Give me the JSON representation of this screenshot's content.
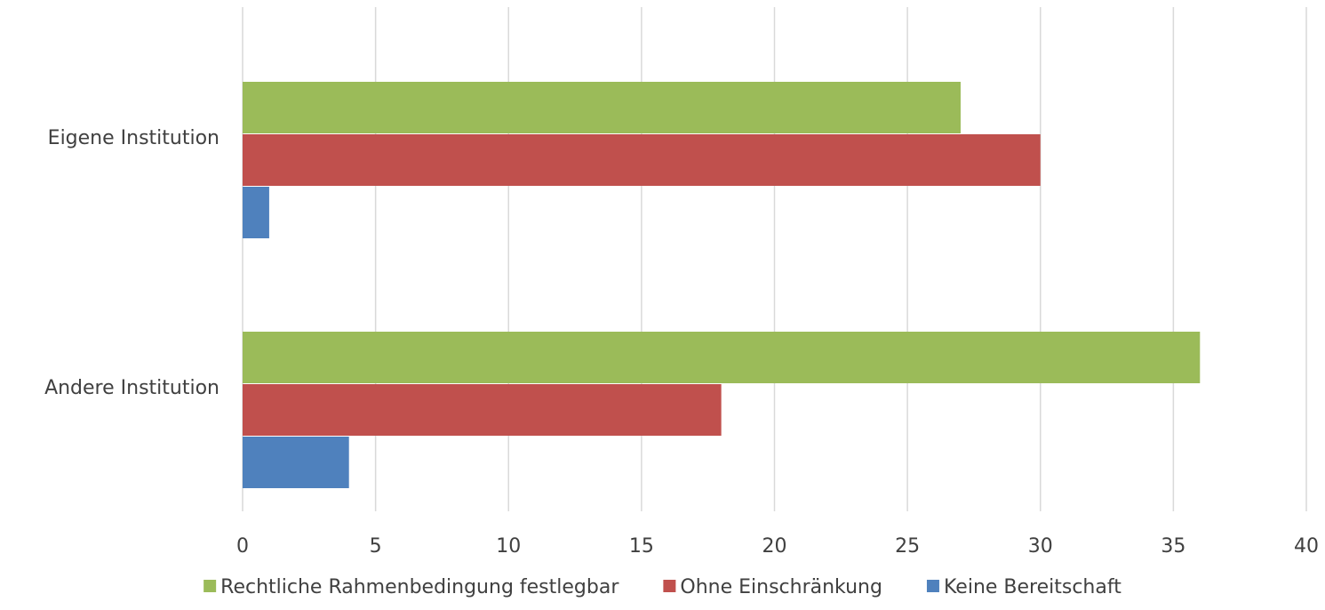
{
  "chart_data": {
    "type": "bar",
    "orientation": "horizontal",
    "categories": [
      "Eigene Institution",
      "Andere Institution"
    ],
    "series": [
      {
        "name": "Rechtliche Rahmenbedingung festlegbar",
        "color": "#9BBB59",
        "values": [
          27,
          36
        ]
      },
      {
        "name": "Ohne Einschränkung",
        "color": "#C0504D",
        "values": [
          30,
          18
        ]
      },
      {
        "name": "Keine Bereitschaft",
        "color": "#4F81BD",
        "values": [
          1,
          4
        ]
      }
    ],
    "xlim": [
      0,
      40
    ],
    "xticks": [
      0,
      5,
      10,
      15,
      20,
      25,
      30,
      35,
      40
    ],
    "grid": "vertical",
    "legend_position": "bottom",
    "title": "",
    "xlabel": "",
    "ylabel": ""
  },
  "colors": {
    "gridline": "#D9D9D9",
    "text": "#404040"
  }
}
